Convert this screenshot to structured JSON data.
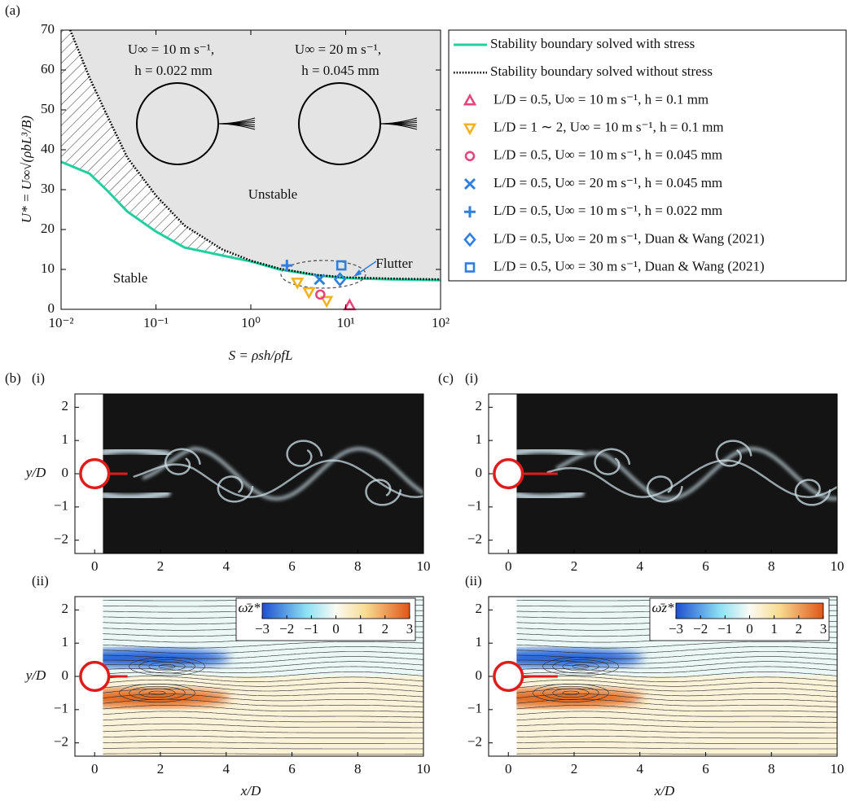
{
  "chart_data": [
    {
      "type": "line",
      "panel_label": "(a)",
      "xlabel": "S = ρsh/ρfL",
      "ylabel": "U* = U∞√(ρbL³/B)",
      "xscale": "log",
      "xlim": [
        0.01,
        100
      ],
      "ylim": [
        0,
        70
      ],
      "xticks": [
        {
          "value": 0.01,
          "label": "10⁻²"
        },
        {
          "value": 0.1,
          "label": "10⁻¹"
        },
        {
          "value": 1,
          "label": "10⁰"
        },
        {
          "value": 10,
          "label": "10¹"
        },
        {
          "value": 100,
          "label": "10²"
        }
      ],
      "yticks": [
        0,
        10,
        20,
        30,
        40,
        50,
        60,
        70
      ],
      "unstable_color": "#e4e4e4",
      "annotations": [
        "U∞ = 10 m s⁻¹,",
        "h = 0.022 mm",
        "U∞ = 20 m s⁻¹,",
        "h = 0.045 mm",
        "Unstable",
        "Stable",
        "Flutter"
      ],
      "series": [
        {
          "name": "Stability boundary solved with stress",
          "color": "#22cfa0",
          "style": "solid",
          "x": [
            0.01,
            0.02,
            0.03,
            0.05,
            0.1,
            0.2,
            0.5,
            1,
            2,
            5,
            10,
            30,
            100
          ],
          "values": [
            37,
            34,
            30,
            24.5,
            19.5,
            15.5,
            13.5,
            12,
            10,
            8.5,
            7.8,
            7.5,
            7.3
          ]
        },
        {
          "name": "Stability boundary solved without stress",
          "color": "#000000",
          "style": "dotted",
          "x": [
            0.0125,
            0.02,
            0.03,
            0.05,
            0.1,
            0.2,
            0.5,
            1,
            2,
            5,
            10,
            30,
            100
          ],
          "values": [
            70,
            58,
            49,
            38,
            28.5,
            21,
            15,
            12.2,
            10.2,
            8.6,
            8,
            7.7,
            7.5
          ]
        },
        {
          "name": "L/D = 0.5, U∞ = 10 m s⁻¹, h = 0.1 mm",
          "color": "#e8457a",
          "style": "triangle-up",
          "x": [
            11
          ],
          "values": [
            1
          ]
        },
        {
          "name": "L/D = 1 ∼ 2, U∞ = 10 m s⁻¹, h = 0.1 mm",
          "color": "#f5b21f",
          "style": "triangle-down",
          "x": [
            3.1,
            4.1,
            6.3
          ],
          "values": [
            6.7,
            4.3,
            2.1
          ]
        },
        {
          "name": "L/D = 0.5, U∞ = 10 m s⁻¹, h = 0.045 mm",
          "color": "#e8457a",
          "style": "circle",
          "x": [
            5.4
          ],
          "values": [
            3.7
          ]
        },
        {
          "name": "L/D = 0.5, U∞ = 20 m s⁻¹, h = 0.045 mm",
          "color": "#2f7fe0",
          "style": "cross",
          "x": [
            5.3
          ],
          "values": [
            7.5
          ]
        },
        {
          "name": "L/D = 0.5, U∞ = 10 m s⁻¹, h = 0.022 mm",
          "color": "#2f7fe0",
          "style": "plus",
          "x": [
            2.4
          ],
          "values": [
            11
          ]
        },
        {
          "name": "L/D = 0.5, U∞ = 20 m s⁻¹, Duan & Wang (2021)",
          "color": "#2f7fe0",
          "style": "diamond",
          "x": [
            8.7
          ],
          "values": [
            7.5
          ]
        },
        {
          "name": "L/D = 0.5, U∞ = 30 m s⁻¹, Duan & Wang (2021)",
          "color": "#2f7fe0",
          "style": "square",
          "x": [
            9
          ],
          "values": [
            11
          ]
        }
      ]
    },
    {
      "type": "field",
      "panel_label": "(b)",
      "sublabel": "(i)",
      "ylabel": "y/D",
      "xlim": [
        -0.6,
        10
      ],
      "ylim": [
        -2.4,
        2.4
      ],
      "xticks": [
        0,
        2,
        4,
        6,
        8,
        10
      ],
      "yticks": [
        {
          "value": -2,
          "label": "−2"
        },
        {
          "value": -1,
          "label": "−1"
        },
        0,
        1,
        2
      ]
    },
    {
      "type": "field",
      "sublabel": "(ii)",
      "ylabel": "y/D",
      "xlabel": "x/D",
      "streamlines": true,
      "xlim": [
        -0.6,
        10
      ],
      "ylim": [
        -2.4,
        2.4
      ],
      "xticks": [
        0,
        2,
        4,
        6,
        8,
        10
      ],
      "yticks": [
        {
          "value": -2,
          "label": "−2"
        },
        {
          "value": -1,
          "label": "−1"
        },
        0,
        1,
        2
      ],
      "colorbar": {
        "label": "ω̄z*",
        "lim": [
          -3,
          3
        ],
        "ticks": [
          {
            "value": -3,
            "label": "−3"
          },
          {
            "value": -2,
            "label": "−2"
          },
          {
            "value": -1,
            "label": "−1"
          },
          0,
          1,
          2,
          3
        ]
      }
    },
    {
      "type": "field",
      "panel_label": "(c)",
      "sublabel": "(i)",
      "xlim": [
        -0.6,
        10
      ],
      "ylim": [
        -2.4,
        2.4
      ],
      "xticks": [
        0,
        2,
        4,
        6,
        8,
        10
      ],
      "yticks": [
        {
          "value": -2,
          "label": "−2"
        },
        {
          "value": -1,
          "label": "−1"
        },
        0,
        1,
        2
      ]
    },
    {
      "type": "field",
      "sublabel": "(ii)",
      "xlabel": "x/D",
      "streamlines": true,
      "xlim": [
        -0.6,
        10
      ],
      "ylim": [
        -2.4,
        2.4
      ],
      "xticks": [
        0,
        2,
        4,
        6,
        8,
        10
      ],
      "yticks": [
        {
          "value": -2,
          "label": "−2"
        },
        {
          "value": -1,
          "label": "−1"
        },
        0,
        1,
        2
      ],
      "colorbar": {
        "label": "ω̄z*",
        "lim": [
          -3,
          3
        ],
        "ticks": [
          {
            "value": -3,
            "label": "−3"
          },
          {
            "value": -2,
            "label": "−2"
          },
          {
            "value": -1,
            "label": "−1"
          },
          0,
          1,
          2,
          3
        ]
      }
    }
  ]
}
